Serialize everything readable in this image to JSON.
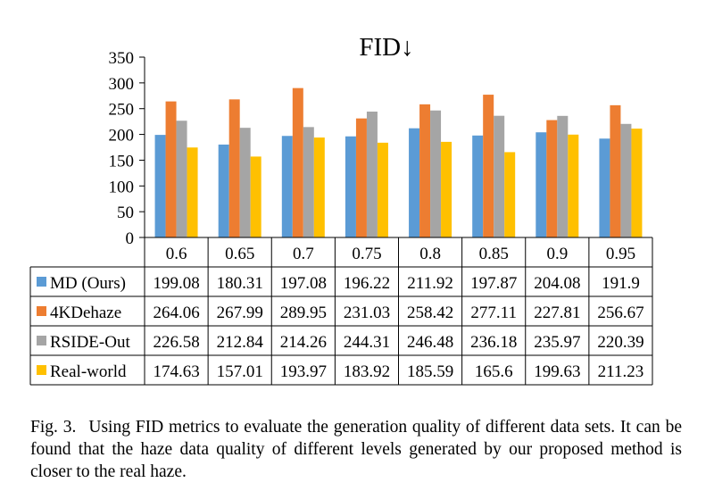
{
  "chart_data": {
    "type": "bar",
    "title": "FID↓",
    "categories": [
      "0.6",
      "0.65",
      "0.7",
      "0.75",
      "0.8",
      "0.85",
      "0.9",
      "0.95"
    ],
    "ylim": [
      0,
      350
    ],
    "yticks": [
      0,
      50,
      100,
      150,
      200,
      250,
      300,
      350
    ],
    "xlabel": "",
    "ylabel": "",
    "legend": "data table below chart",
    "series": [
      {
        "name": "MD (Ours)",
        "color": "#5B9BD5",
        "values": [
          199.08,
          180.31,
          197.08,
          196.22,
          211.92,
          197.87,
          204.08,
          191.9
        ],
        "labels": [
          "199.08",
          "180.31",
          "197.08",
          "196.22",
          "211.92",
          "197.87",
          "204.08",
          "191.9"
        ]
      },
      {
        "name": "4KDehaze",
        "color": "#ED7D31",
        "values": [
          264.06,
          267.99,
          289.95,
          231.03,
          258.42,
          277.11,
          227.81,
          256.67
        ],
        "labels": [
          "264.06",
          "267.99",
          "289.95",
          "231.03",
          "258.42",
          "277.11",
          "227.81",
          "256.67"
        ]
      },
      {
        "name": "RSIDE-Out",
        "color": "#A5A5A5",
        "values": [
          226.58,
          212.84,
          214.26,
          244.31,
          246.48,
          236.18,
          235.97,
          220.39
        ],
        "labels": [
          "226.58",
          "212.84",
          "214.26",
          "244.31",
          "246.48",
          "236.18",
          "235.97",
          "220.39"
        ]
      },
      {
        "name": "Real-world",
        "color": "#FFC000",
        "values": [
          174.63,
          157.01,
          193.97,
          183.92,
          185.59,
          165.6,
          199.63,
          211.23
        ],
        "labels": [
          "174.63",
          "157.01",
          "193.97",
          "183.92",
          "185.59",
          "165.6",
          "199.63",
          "211.23"
        ]
      }
    ]
  },
  "caption": {
    "fig_label": "Fig. 3.",
    "text": "Using FID metrics to evaluate the generation quality of different data sets. It can be found that the haze data quality of different levels generated by our proposed method is closer to the real haze."
  }
}
